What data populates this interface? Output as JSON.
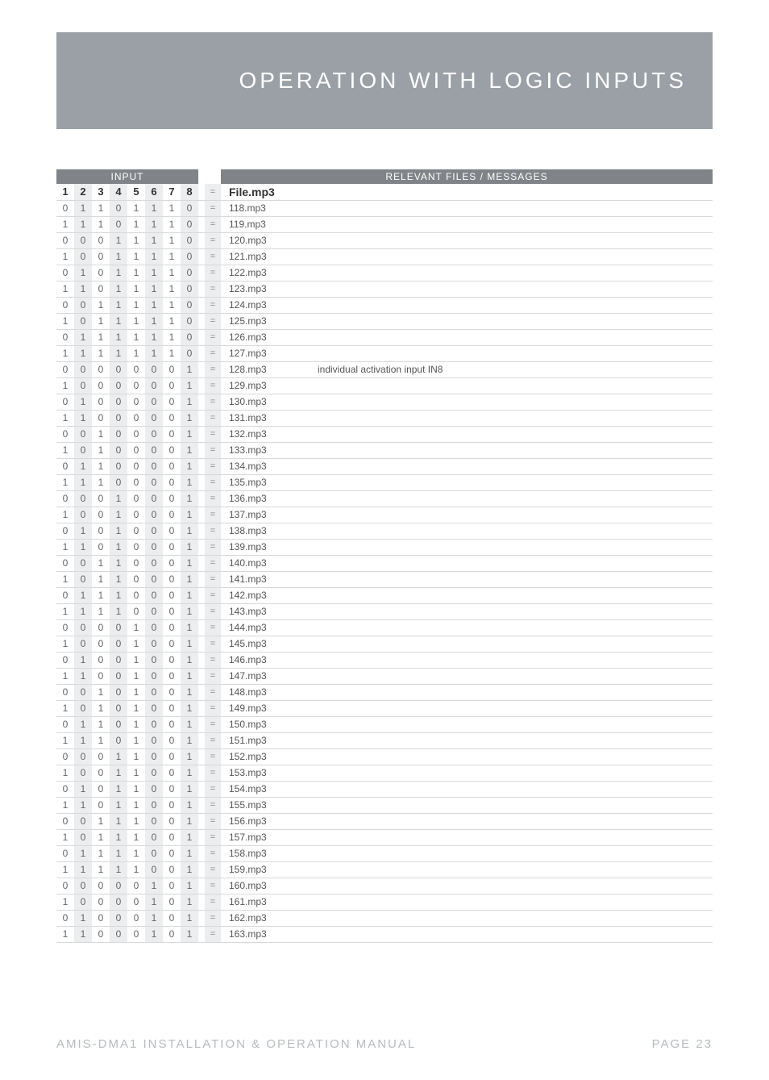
{
  "colors": {
    "header_bg": "#9aa0a6",
    "header_text": "#ffffff",
    "table_hdr_bg": "#808488",
    "row_border": "#d7d9db",
    "shaded_bg": "#ecedee",
    "body_text": "#555555",
    "footer_text": "#b7bbbf"
  },
  "fonts": {
    "page_title_size": 28,
    "page_title_letterspacing": 4,
    "table_body_size": 12,
    "footer_size": 15
  },
  "page_title": "OPERATION WITH LOGIC INPUTS",
  "table": {
    "input_header": "INPUT",
    "messages_header": "RELEVANT FILES / MESSAGES",
    "col_labels": [
      "1",
      "2",
      "3",
      "4",
      "5",
      "6",
      "7",
      "8"
    ],
    "eq_symbol": "=",
    "header_file_label": "File.mp3",
    "shaded_cols": [
      2,
      4,
      6,
      8
    ],
    "rows": [
      {
        "bits": [
          "0",
          "1",
          "1",
          "0",
          "1",
          "1",
          "1",
          "0"
        ],
        "file": "118.mp3",
        "msg": ""
      },
      {
        "bits": [
          "1",
          "1",
          "1",
          "0",
          "1",
          "1",
          "1",
          "0"
        ],
        "file": "119.mp3",
        "msg": ""
      },
      {
        "bits": [
          "0",
          "0",
          "0",
          "1",
          "1",
          "1",
          "1",
          "0"
        ],
        "file": "120.mp3",
        "msg": ""
      },
      {
        "bits": [
          "1",
          "0",
          "0",
          "1",
          "1",
          "1",
          "1",
          "0"
        ],
        "file": "121.mp3",
        "msg": ""
      },
      {
        "bits": [
          "0",
          "1",
          "0",
          "1",
          "1",
          "1",
          "1",
          "0"
        ],
        "file": "122.mp3",
        "msg": ""
      },
      {
        "bits": [
          "1",
          "1",
          "0",
          "1",
          "1",
          "1",
          "1",
          "0"
        ],
        "file": "123.mp3",
        "msg": ""
      },
      {
        "bits": [
          "0",
          "0",
          "1",
          "1",
          "1",
          "1",
          "1",
          "0"
        ],
        "file": "124.mp3",
        "msg": ""
      },
      {
        "bits": [
          "1",
          "0",
          "1",
          "1",
          "1",
          "1",
          "1",
          "0"
        ],
        "file": "125.mp3",
        "msg": ""
      },
      {
        "bits": [
          "0",
          "1",
          "1",
          "1",
          "1",
          "1",
          "1",
          "0"
        ],
        "file": "126.mp3",
        "msg": ""
      },
      {
        "bits": [
          "1",
          "1",
          "1",
          "1",
          "1",
          "1",
          "1",
          "0"
        ],
        "file": "127.mp3",
        "msg": ""
      },
      {
        "bits": [
          "0",
          "0",
          "0",
          "0",
          "0",
          "0",
          "0",
          "1"
        ],
        "file": "128.mp3",
        "msg": "individual activation input IN8"
      },
      {
        "bits": [
          "1",
          "0",
          "0",
          "0",
          "0",
          "0",
          "0",
          "1"
        ],
        "file": "129.mp3",
        "msg": ""
      },
      {
        "bits": [
          "0",
          "1",
          "0",
          "0",
          "0",
          "0",
          "0",
          "1"
        ],
        "file": "130.mp3",
        "msg": ""
      },
      {
        "bits": [
          "1",
          "1",
          "0",
          "0",
          "0",
          "0",
          "0",
          "1"
        ],
        "file": "131.mp3",
        "msg": ""
      },
      {
        "bits": [
          "0",
          "0",
          "1",
          "0",
          "0",
          "0",
          "0",
          "1"
        ],
        "file": "132.mp3",
        "msg": ""
      },
      {
        "bits": [
          "1",
          "0",
          "1",
          "0",
          "0",
          "0",
          "0",
          "1"
        ],
        "file": "133.mp3",
        "msg": ""
      },
      {
        "bits": [
          "0",
          "1",
          "1",
          "0",
          "0",
          "0",
          "0",
          "1"
        ],
        "file": "134.mp3",
        "msg": ""
      },
      {
        "bits": [
          "1",
          "1",
          "1",
          "0",
          "0",
          "0",
          "0",
          "1"
        ],
        "file": "135.mp3",
        "msg": ""
      },
      {
        "bits": [
          "0",
          "0",
          "0",
          "1",
          "0",
          "0",
          "0",
          "1"
        ],
        "file": "136.mp3",
        "msg": ""
      },
      {
        "bits": [
          "1",
          "0",
          "0",
          "1",
          "0",
          "0",
          "0",
          "1"
        ],
        "file": "137.mp3",
        "msg": ""
      },
      {
        "bits": [
          "0",
          "1",
          "0",
          "1",
          "0",
          "0",
          "0",
          "1"
        ],
        "file": "138.mp3",
        "msg": ""
      },
      {
        "bits": [
          "1",
          "1",
          "0",
          "1",
          "0",
          "0",
          "0",
          "1"
        ],
        "file": "139.mp3",
        "msg": ""
      },
      {
        "bits": [
          "0",
          "0",
          "1",
          "1",
          "0",
          "0",
          "0",
          "1"
        ],
        "file": "140.mp3",
        "msg": ""
      },
      {
        "bits": [
          "1",
          "0",
          "1",
          "1",
          "0",
          "0",
          "0",
          "1"
        ],
        "file": "141.mp3",
        "msg": ""
      },
      {
        "bits": [
          "0",
          "1",
          "1",
          "1",
          "0",
          "0",
          "0",
          "1"
        ],
        "file": "142.mp3",
        "msg": ""
      },
      {
        "bits": [
          "1",
          "1",
          "1",
          "1",
          "0",
          "0",
          "0",
          "1"
        ],
        "file": "143.mp3",
        "msg": ""
      },
      {
        "bits": [
          "0",
          "0",
          "0",
          "0",
          "1",
          "0",
          "0",
          "1"
        ],
        "file": "144.mp3",
        "msg": ""
      },
      {
        "bits": [
          "1",
          "0",
          "0",
          "0",
          "1",
          "0",
          "0",
          "1"
        ],
        "file": "145.mp3",
        "msg": ""
      },
      {
        "bits": [
          "0",
          "1",
          "0",
          "0",
          "1",
          "0",
          "0",
          "1"
        ],
        "file": "146.mp3",
        "msg": ""
      },
      {
        "bits": [
          "1",
          "1",
          "0",
          "0",
          "1",
          "0",
          "0",
          "1"
        ],
        "file": "147.mp3",
        "msg": ""
      },
      {
        "bits": [
          "0",
          "0",
          "1",
          "0",
          "1",
          "0",
          "0",
          "1"
        ],
        "file": "148.mp3",
        "msg": ""
      },
      {
        "bits": [
          "1",
          "0",
          "1",
          "0",
          "1",
          "0",
          "0",
          "1"
        ],
        "file": "149.mp3",
        "msg": ""
      },
      {
        "bits": [
          "0",
          "1",
          "1",
          "0",
          "1",
          "0",
          "0",
          "1"
        ],
        "file": "150.mp3",
        "msg": ""
      },
      {
        "bits": [
          "1",
          "1",
          "1",
          "0",
          "1",
          "0",
          "0",
          "1"
        ],
        "file": "151.mp3",
        "msg": ""
      },
      {
        "bits": [
          "0",
          "0",
          "0",
          "1",
          "1",
          "0",
          "0",
          "1"
        ],
        "file": "152.mp3",
        "msg": ""
      },
      {
        "bits": [
          "1",
          "0",
          "0",
          "1",
          "1",
          "0",
          "0",
          "1"
        ],
        "file": "153.mp3",
        "msg": ""
      },
      {
        "bits": [
          "0",
          "1",
          "0",
          "1",
          "1",
          "0",
          "0",
          "1"
        ],
        "file": "154.mp3",
        "msg": ""
      },
      {
        "bits": [
          "1",
          "1",
          "0",
          "1",
          "1",
          "0",
          "0",
          "1"
        ],
        "file": "155.mp3",
        "msg": ""
      },
      {
        "bits": [
          "0",
          "0",
          "1",
          "1",
          "1",
          "0",
          "0",
          "1"
        ],
        "file": "156.mp3",
        "msg": ""
      },
      {
        "bits": [
          "1",
          "0",
          "1",
          "1",
          "1",
          "0",
          "0",
          "1"
        ],
        "file": "157.mp3",
        "msg": ""
      },
      {
        "bits": [
          "0",
          "1",
          "1",
          "1",
          "1",
          "0",
          "0",
          "1"
        ],
        "file": "158.mp3",
        "msg": ""
      },
      {
        "bits": [
          "1",
          "1",
          "1",
          "1",
          "1",
          "0",
          "0",
          "1"
        ],
        "file": "159.mp3",
        "msg": ""
      },
      {
        "bits": [
          "0",
          "0",
          "0",
          "0",
          "0",
          "1",
          "0",
          "1"
        ],
        "file": "160.mp3",
        "msg": ""
      },
      {
        "bits": [
          "1",
          "0",
          "0",
          "0",
          "0",
          "1",
          "0",
          "1"
        ],
        "file": "161.mp3",
        "msg": ""
      },
      {
        "bits": [
          "0",
          "1",
          "0",
          "0",
          "0",
          "1",
          "0",
          "1"
        ],
        "file": "162.mp3",
        "msg": ""
      },
      {
        "bits": [
          "1",
          "1",
          "0",
          "0",
          "0",
          "1",
          "0",
          "1"
        ],
        "file": "163.mp3",
        "msg": ""
      }
    ]
  },
  "footer": {
    "left": "AMIS-DMA1 INSTALLATION & OPERATION MANUAL",
    "right": "PAGE 23"
  }
}
